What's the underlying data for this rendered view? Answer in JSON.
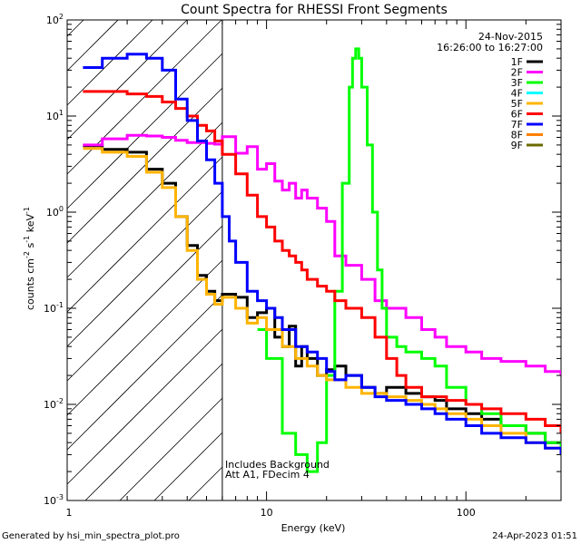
{
  "chart_data": {
    "type": "line",
    "title": "Count Spectra for RHESSI Front Segments",
    "xlabel": "Energy (keV)",
    "ylabel": {
      "base": "counts cm",
      "exp1": "-2",
      "mid1": " s",
      "exp2": "-1",
      "mid2": " keV",
      "exp3": "-1"
    },
    "xscale": "log",
    "yscale": "log",
    "xlim": [
      1,
      300
    ],
    "ylim": [
      0.001,
      100
    ],
    "x_ticks": [
      {
        "value": 10,
        "label": "10"
      },
      {
        "value": 100,
        "label": "100"
      }
    ],
    "x_edge_labels": [
      {
        "value": 1,
        "label": "1"
      }
    ],
    "y_ticks": [
      {
        "value": 0.001,
        "base": "10",
        "exp": "-3"
      },
      {
        "value": 0.01,
        "base": "10",
        "exp": "-2"
      },
      {
        "value": 0.1,
        "base": "10",
        "exp": "-1"
      },
      {
        "value": 1,
        "base": "10",
        "exp": "0"
      },
      {
        "value": 10,
        "base": "10",
        "exp": "1"
      },
      {
        "value": 100,
        "base": "10",
        "exp": "2"
      }
    ],
    "shaded_region": {
      "x_max": 6.0,
      "y_bottom": 0.001,
      "y_top": 100,
      "style": "diagonal hatch"
    },
    "date": "24-Nov-2015",
    "time_range": "16:26:00 to 16:27:00",
    "annotation_lines": [
      "Includes Background",
      "Att A1, FDecim  4"
    ],
    "footer_left": "Generated by hsi_min_spectra_plot.pro",
    "footer_right": "24-Apr-2023 01:51",
    "legend_position": "top-right",
    "legend": [
      {
        "name": "1F",
        "color": "#000000"
      },
      {
        "name": "2F",
        "color": "#ff00ff"
      },
      {
        "name": "3F",
        "color": "#00ff00"
      },
      {
        "name": "4F",
        "color": "#00ffff"
      },
      {
        "name": "5F",
        "color": "#ffb400"
      },
      {
        "name": "6F",
        "color": "#ff0000"
      },
      {
        "name": "7F",
        "color": "#0000ff"
      },
      {
        "name": "8F",
        "color": "#ff8000"
      },
      {
        "name": "9F",
        "color": "#6b6b00"
      }
    ],
    "series": [
      {
        "name": "1F",
        "color": "#000000",
        "points": [
          [
            1.2,
            4.9
          ],
          [
            1.5,
            4.5
          ],
          [
            2.0,
            4.2
          ],
          [
            2.5,
            2.8
          ],
          [
            3.0,
            2.0
          ],
          [
            3.5,
            0.9
          ],
          [
            4.0,
            0.45
          ],
          [
            4.5,
            0.22
          ],
          [
            5.0,
            0.15
          ],
          [
            5.5,
            0.12
          ],
          [
            6.0,
            0.14
          ],
          [
            7.0,
            0.13
          ],
          [
            8.0,
            0.08
          ],
          [
            9.0,
            0.09
          ],
          [
            10.0,
            0.1
          ],
          [
            11.0,
            0.05
          ],
          [
            12.0,
            0.04
          ],
          [
            13.0,
            0.065
          ],
          [
            14.0,
            0.025
          ],
          [
            15.0,
            0.04
          ],
          [
            16.0,
            0.03
          ],
          [
            18.0,
            0.02
          ],
          [
            20.0,
            0.023
          ],
          [
            22.0,
            0.025
          ],
          [
            25.0,
            0.02
          ],
          [
            30.0,
            0.015
          ],
          [
            35.0,
            0.013
          ],
          [
            40.0,
            0.015
          ],
          [
            50.0,
            0.013
          ],
          [
            60.0,
            0.012
          ],
          [
            70.0,
            0.011
          ],
          [
            80.0,
            0.009
          ],
          [
            100.0,
            0.008
          ],
          [
            120.0,
            0.007
          ],
          [
            150.0,
            0.006
          ],
          [
            200.0,
            0.005
          ],
          [
            250.0,
            0.004
          ],
          [
            300.0,
            0.003
          ]
        ]
      },
      {
        "name": "2F",
        "color": "#ff00ff",
        "points": [
          [
            1.2,
            5.0
          ],
          [
            1.5,
            5.8
          ],
          [
            2.0,
            6.3
          ],
          [
            2.5,
            6.2
          ],
          [
            3.0,
            6.0
          ],
          [
            3.5,
            5.6
          ],
          [
            4.0,
            5.3
          ],
          [
            5.0,
            5.2
          ],
          [
            5.5,
            5.1
          ],
          [
            6.0,
            6.1
          ],
          [
            7.0,
            4.1
          ],
          [
            8.0,
            4.8
          ],
          [
            9.0,
            2.8
          ],
          [
            10.0,
            3.2
          ],
          [
            11.0,
            2.1
          ],
          [
            12.0,
            1.7
          ],
          [
            13.0,
            2.0
          ],
          [
            14.0,
            1.4
          ],
          [
            15.0,
            1.7
          ],
          [
            16.0,
            1.4
          ],
          [
            18.0,
            1.1
          ],
          [
            20.0,
            0.8
          ],
          [
            22.0,
            0.35
          ],
          [
            25.0,
            0.28
          ],
          [
            30.0,
            0.2
          ],
          [
            35.0,
            0.12
          ],
          [
            40.0,
            0.1
          ],
          [
            50.0,
            0.08
          ],
          [
            60.0,
            0.06
          ],
          [
            70.0,
            0.05
          ],
          [
            80.0,
            0.04
          ],
          [
            100.0,
            0.035
          ],
          [
            120.0,
            0.03
          ],
          [
            150.0,
            0.028
          ],
          [
            200.0,
            0.025
          ],
          [
            250.0,
            0.022
          ],
          [
            300.0,
            0.02
          ]
        ]
      },
      {
        "name": "3F",
        "color": "#00ff00",
        "points": [
          [
            9.0,
            0.06
          ],
          [
            10.0,
            0.03
          ],
          [
            12.0,
            0.005
          ],
          [
            14.0,
            0.003
          ],
          [
            16.0,
            0.002
          ],
          [
            18.0,
            0.004
          ],
          [
            20.0,
            0.02
          ],
          [
            22.0,
            0.15
          ],
          [
            24.0,
            2.0
          ],
          [
            26.0,
            20.0
          ],
          [
            27.0,
            40.0
          ],
          [
            28.0,
            50.0
          ],
          [
            29.0,
            40.0
          ],
          [
            30.0,
            20.0
          ],
          [
            32.0,
            5.0
          ],
          [
            34.0,
            1.0
          ],
          [
            36.0,
            0.25
          ],
          [
            38.0,
            0.1
          ],
          [
            40.0,
            0.05
          ],
          [
            45.0,
            0.04
          ],
          [
            50.0,
            0.035
          ],
          [
            60.0,
            0.03
          ],
          [
            70.0,
            0.025
          ],
          [
            80.0,
            0.015
          ],
          [
            100.0,
            0.01
          ],
          [
            120.0,
            0.008
          ],
          [
            150.0,
            0.006
          ],
          [
            200.0,
            0.005
          ],
          [
            250.0,
            0.004
          ],
          [
            300.0,
            0.003
          ]
        ]
      },
      {
        "name": "5F",
        "color": "#ffb400",
        "points": [
          [
            1.2,
            4.6
          ],
          [
            1.5,
            4.2
          ],
          [
            2.0,
            3.8
          ],
          [
            2.5,
            2.6
          ],
          [
            3.0,
            1.8
          ],
          [
            3.5,
            0.9
          ],
          [
            4.0,
            0.4
          ],
          [
            4.5,
            0.2
          ],
          [
            5.0,
            0.14
          ],
          [
            5.5,
            0.11
          ],
          [
            6.0,
            0.13
          ],
          [
            7.0,
            0.1
          ],
          [
            8.0,
            0.07
          ],
          [
            9.0,
            0.08
          ],
          [
            10.0,
            0.06
          ],
          [
            12.0,
            0.04
          ],
          [
            14.0,
            0.03
          ],
          [
            16.0,
            0.025
          ],
          [
            18.0,
            0.02
          ],
          [
            20.0,
            0.018
          ],
          [
            25.0,
            0.015
          ],
          [
            30.0,
            0.013
          ],
          [
            40.0,
            0.012
          ],
          [
            50.0,
            0.011
          ],
          [
            60.0,
            0.01
          ],
          [
            70.0,
            0.009
          ],
          [
            80.0,
            0.008
          ],
          [
            100.0,
            0.007
          ],
          [
            120.0,
            0.006
          ],
          [
            150.0,
            0.005
          ],
          [
            200.0,
            0.004
          ],
          [
            250.0,
            0.0035
          ],
          [
            300.0,
            0.003
          ]
        ]
      },
      {
        "name": "6F",
        "color": "#ff0000",
        "points": [
          [
            1.2,
            18.0
          ],
          [
            1.5,
            18.0
          ],
          [
            2.0,
            17.0
          ],
          [
            2.5,
            16.0
          ],
          [
            3.0,
            14.0
          ],
          [
            3.5,
            12.0
          ],
          [
            4.0,
            10.0
          ],
          [
            4.5,
            8.0
          ],
          [
            5.0,
            7.0
          ],
          [
            5.5,
            5.5
          ],
          [
            6.0,
            4.0
          ],
          [
            7.0,
            2.5
          ],
          [
            8.0,
            1.5
          ],
          [
            9.0,
            0.9
          ],
          [
            10.0,
            0.7
          ],
          [
            11.0,
            0.5
          ],
          [
            12.0,
            0.4
          ],
          [
            13.0,
            0.35
          ],
          [
            14.0,
            0.3
          ],
          [
            15.0,
            0.25
          ],
          [
            16.0,
            0.2
          ],
          [
            18.0,
            0.17
          ],
          [
            20.0,
            0.15
          ],
          [
            22.0,
            0.12
          ],
          [
            25.0,
            0.1
          ],
          [
            30.0,
            0.08
          ],
          [
            35.0,
            0.05
          ],
          [
            40.0,
            0.03
          ],
          [
            45.0,
            0.02
          ],
          [
            50.0,
            0.015
          ],
          [
            60.0,
            0.012
          ],
          [
            70.0,
            0.012
          ],
          [
            80.0,
            0.011
          ],
          [
            100.0,
            0.01
          ],
          [
            120.0,
            0.009
          ],
          [
            150.0,
            0.008
          ],
          [
            200.0,
            0.007
          ],
          [
            250.0,
            0.006
          ],
          [
            300.0,
            0.005
          ]
        ]
      },
      {
        "name": "7F",
        "color": "#0000ff",
        "points": [
          [
            1.2,
            32.0
          ],
          [
            1.5,
            40.0
          ],
          [
            2.0,
            44.0
          ],
          [
            2.5,
            40.0
          ],
          [
            3.0,
            30.0
          ],
          [
            3.5,
            15.0
          ],
          [
            4.0,
            9.0
          ],
          [
            4.5,
            5.5
          ],
          [
            5.0,
            3.5
          ],
          [
            5.5,
            2.0
          ],
          [
            6.0,
            0.9
          ],
          [
            6.5,
            0.5
          ],
          [
            7.0,
            0.3
          ],
          [
            8.0,
            0.15
          ],
          [
            9.0,
            0.12
          ],
          [
            10.0,
            0.1
          ],
          [
            11.0,
            0.08
          ],
          [
            12.0,
            0.06
          ],
          [
            14.0,
            0.04
          ],
          [
            16.0,
            0.035
          ],
          [
            18.0,
            0.03
          ],
          [
            20.0,
            0.022
          ],
          [
            22.0,
            0.018
          ],
          [
            25.0,
            0.02
          ],
          [
            30.0,
            0.015
          ],
          [
            35.0,
            0.012
          ],
          [
            40.0,
            0.011
          ],
          [
            50.0,
            0.01
          ],
          [
            60.0,
            0.009
          ],
          [
            70.0,
            0.008
          ],
          [
            80.0,
            0.007
          ],
          [
            100.0,
            0.006
          ],
          [
            120.0,
            0.005
          ],
          [
            150.0,
            0.0045
          ],
          [
            200.0,
            0.004
          ],
          [
            250.0,
            0.0035
          ],
          [
            300.0,
            0.003
          ]
        ]
      }
    ]
  }
}
